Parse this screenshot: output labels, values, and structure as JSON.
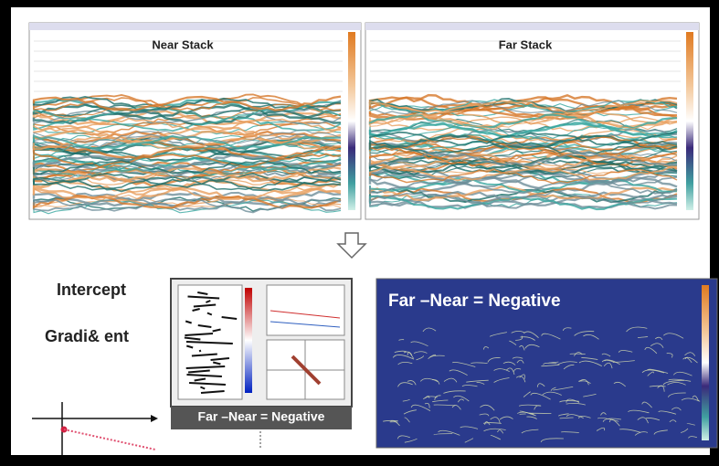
{
  "panels": [
    {
      "title": "Near Stack"
    },
    {
      "title": "Far Stack"
    }
  ],
  "labels": {
    "intercept": "Intercept",
    "gradient": "Gradi& ent"
  },
  "difference_panel": {
    "title": "Far –Near = Negative"
  },
  "crossplot": {
    "caption": "Far –Near = Negative"
  }
}
